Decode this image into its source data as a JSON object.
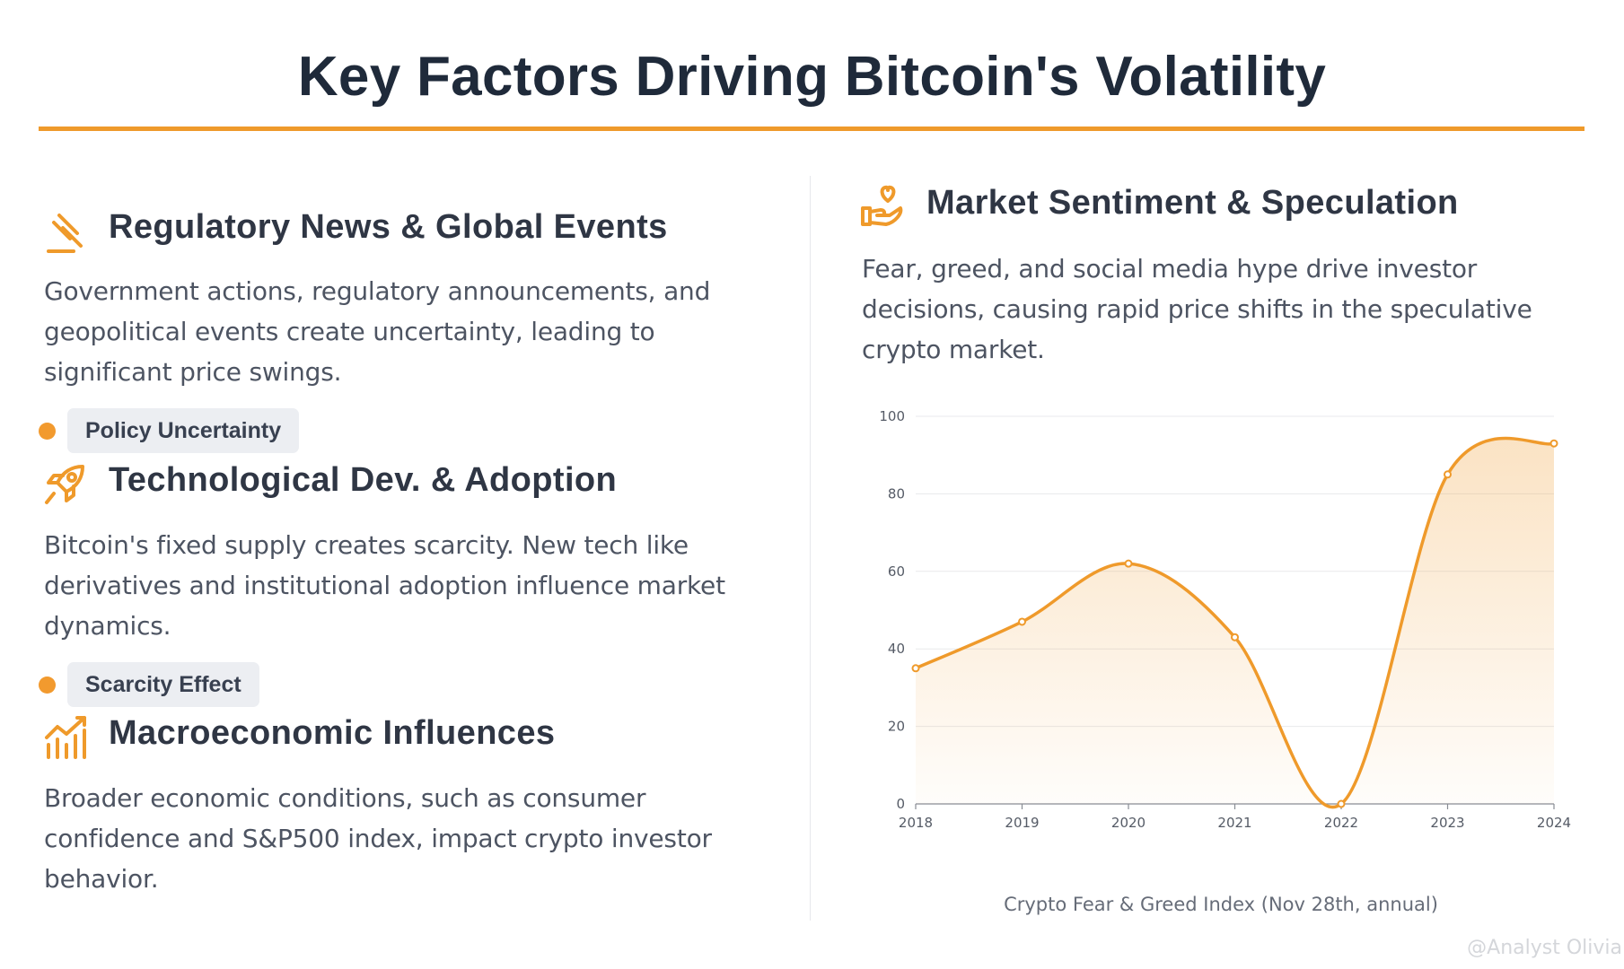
{
  "title": "Key Factors Driving Bitcoin's Volatility",
  "factors": [
    {
      "icon": "gavel-icon",
      "title": "Regulatory News & Global Events",
      "text": "Government actions, regulatory announcements, and geopolitical events create uncertainty, leading to significant price swings.",
      "tag": "Policy Uncertainty"
    },
    {
      "icon": "rocket-icon",
      "title": "Technological Dev. & Adoption",
      "text": "Bitcoin's fixed supply creates scarcity. New tech like derivatives and institutional adoption influence market dynamics.",
      "tag": "Scarcity Effect"
    },
    {
      "icon": "chart-bars-icon",
      "title": "Macroeconomic Influences",
      "text": "Broader economic conditions, such as consumer confidence and S&P500 index, impact crypto investor behavior."
    },
    {
      "icon": "hand-heart-icon",
      "title": "Market Sentiment & Speculation",
      "text": "Fear, greed, and social media hype drive investor decisions, causing rapid price shifts in the speculative crypto market."
    }
  ],
  "chart_caption": "Crypto Fear & Greed Index (Nov 28th, annual)",
  "watermark": "@Analyst Olivia",
  "colors": {
    "accent": "#ef9a2b",
    "text": "#2f3644"
  },
  "chart_data": {
    "type": "area",
    "title": "Crypto Fear & Greed Index (Nov 28th, annual)",
    "categories": [
      "2018",
      "2019",
      "2020",
      "2021",
      "2022",
      "2023",
      "2024"
    ],
    "series": [
      {
        "name": "Fear & Greed Index",
        "values": [
          35,
          47,
          62,
          43,
          0,
          85,
          93
        ]
      }
    ],
    "ylim": [
      0,
      100
    ],
    "yticks": [
      "0",
      "20",
      "40",
      "60",
      "80",
      "100"
    ],
    "xlabel": "",
    "ylabel": "",
    "grid": true
  }
}
